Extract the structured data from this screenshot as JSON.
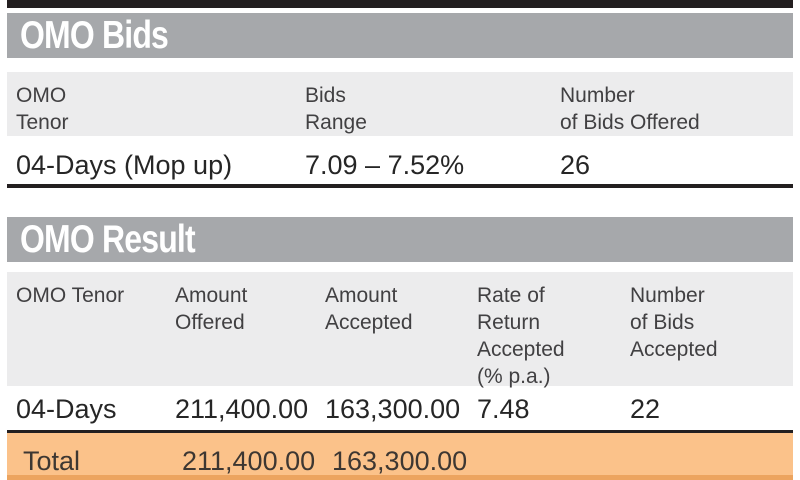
{
  "colors": {
    "top_bar": "#231f20",
    "title_bar_gray": "#a6a8ab",
    "header_band_gray": "#ececed",
    "rule_black": "#231f20",
    "total_orange": "#fbc28a",
    "total_orange_dark": "#eca45f"
  },
  "bids": {
    "title": "OMO Bids",
    "headers": [
      "OMO\nTenor",
      "Bids\nRange",
      "Number\nof Bids Offered"
    ],
    "row": {
      "tenor": "04-Days (Mop up)",
      "bids_range": "7.09 – 7.52%",
      "num_bids_offered": "26"
    }
  },
  "result": {
    "title": "OMO Result",
    "headers": [
      "OMO Tenor",
      "Amount\nOffered",
      "Amount\nAccepted",
      "Rate of\nReturn\nAccepted\n(% p.a.)",
      "Number\nof Bids\nAccepted"
    ],
    "row": {
      "tenor": "04-Days",
      "amount_offered": "211,400.00",
      "amount_accepted": "163,300.00",
      "rate_of_return": "7.48",
      "num_bids_accepted": "22"
    },
    "total": {
      "label": "Total",
      "amount_offered": "211,400.00",
      "amount_accepted": "163,300.00"
    }
  },
  "chart_data": [
    {
      "type": "table",
      "title": "OMO Bids",
      "columns": [
        "OMO Tenor",
        "Bids Range",
        "Number of Bids Offered"
      ],
      "rows": [
        [
          "04-Days (Mop up)",
          "7.09 – 7.52%",
          "26"
        ]
      ]
    },
    {
      "type": "table",
      "title": "OMO Result",
      "columns": [
        "OMO Tenor",
        "Amount Offered",
        "Amount Accepted",
        "Rate of Return Accepted (% p.a.)",
        "Number of Bids Accepted"
      ],
      "rows": [
        [
          "04-Days",
          "211,400.00",
          "163,300.00",
          "7.48",
          "22"
        ],
        [
          "Total",
          "211,400.00",
          "163,300.00",
          "",
          ""
        ]
      ],
      "layout_hints": {
        "total_row_highlight": "#fbc28a"
      }
    }
  ]
}
